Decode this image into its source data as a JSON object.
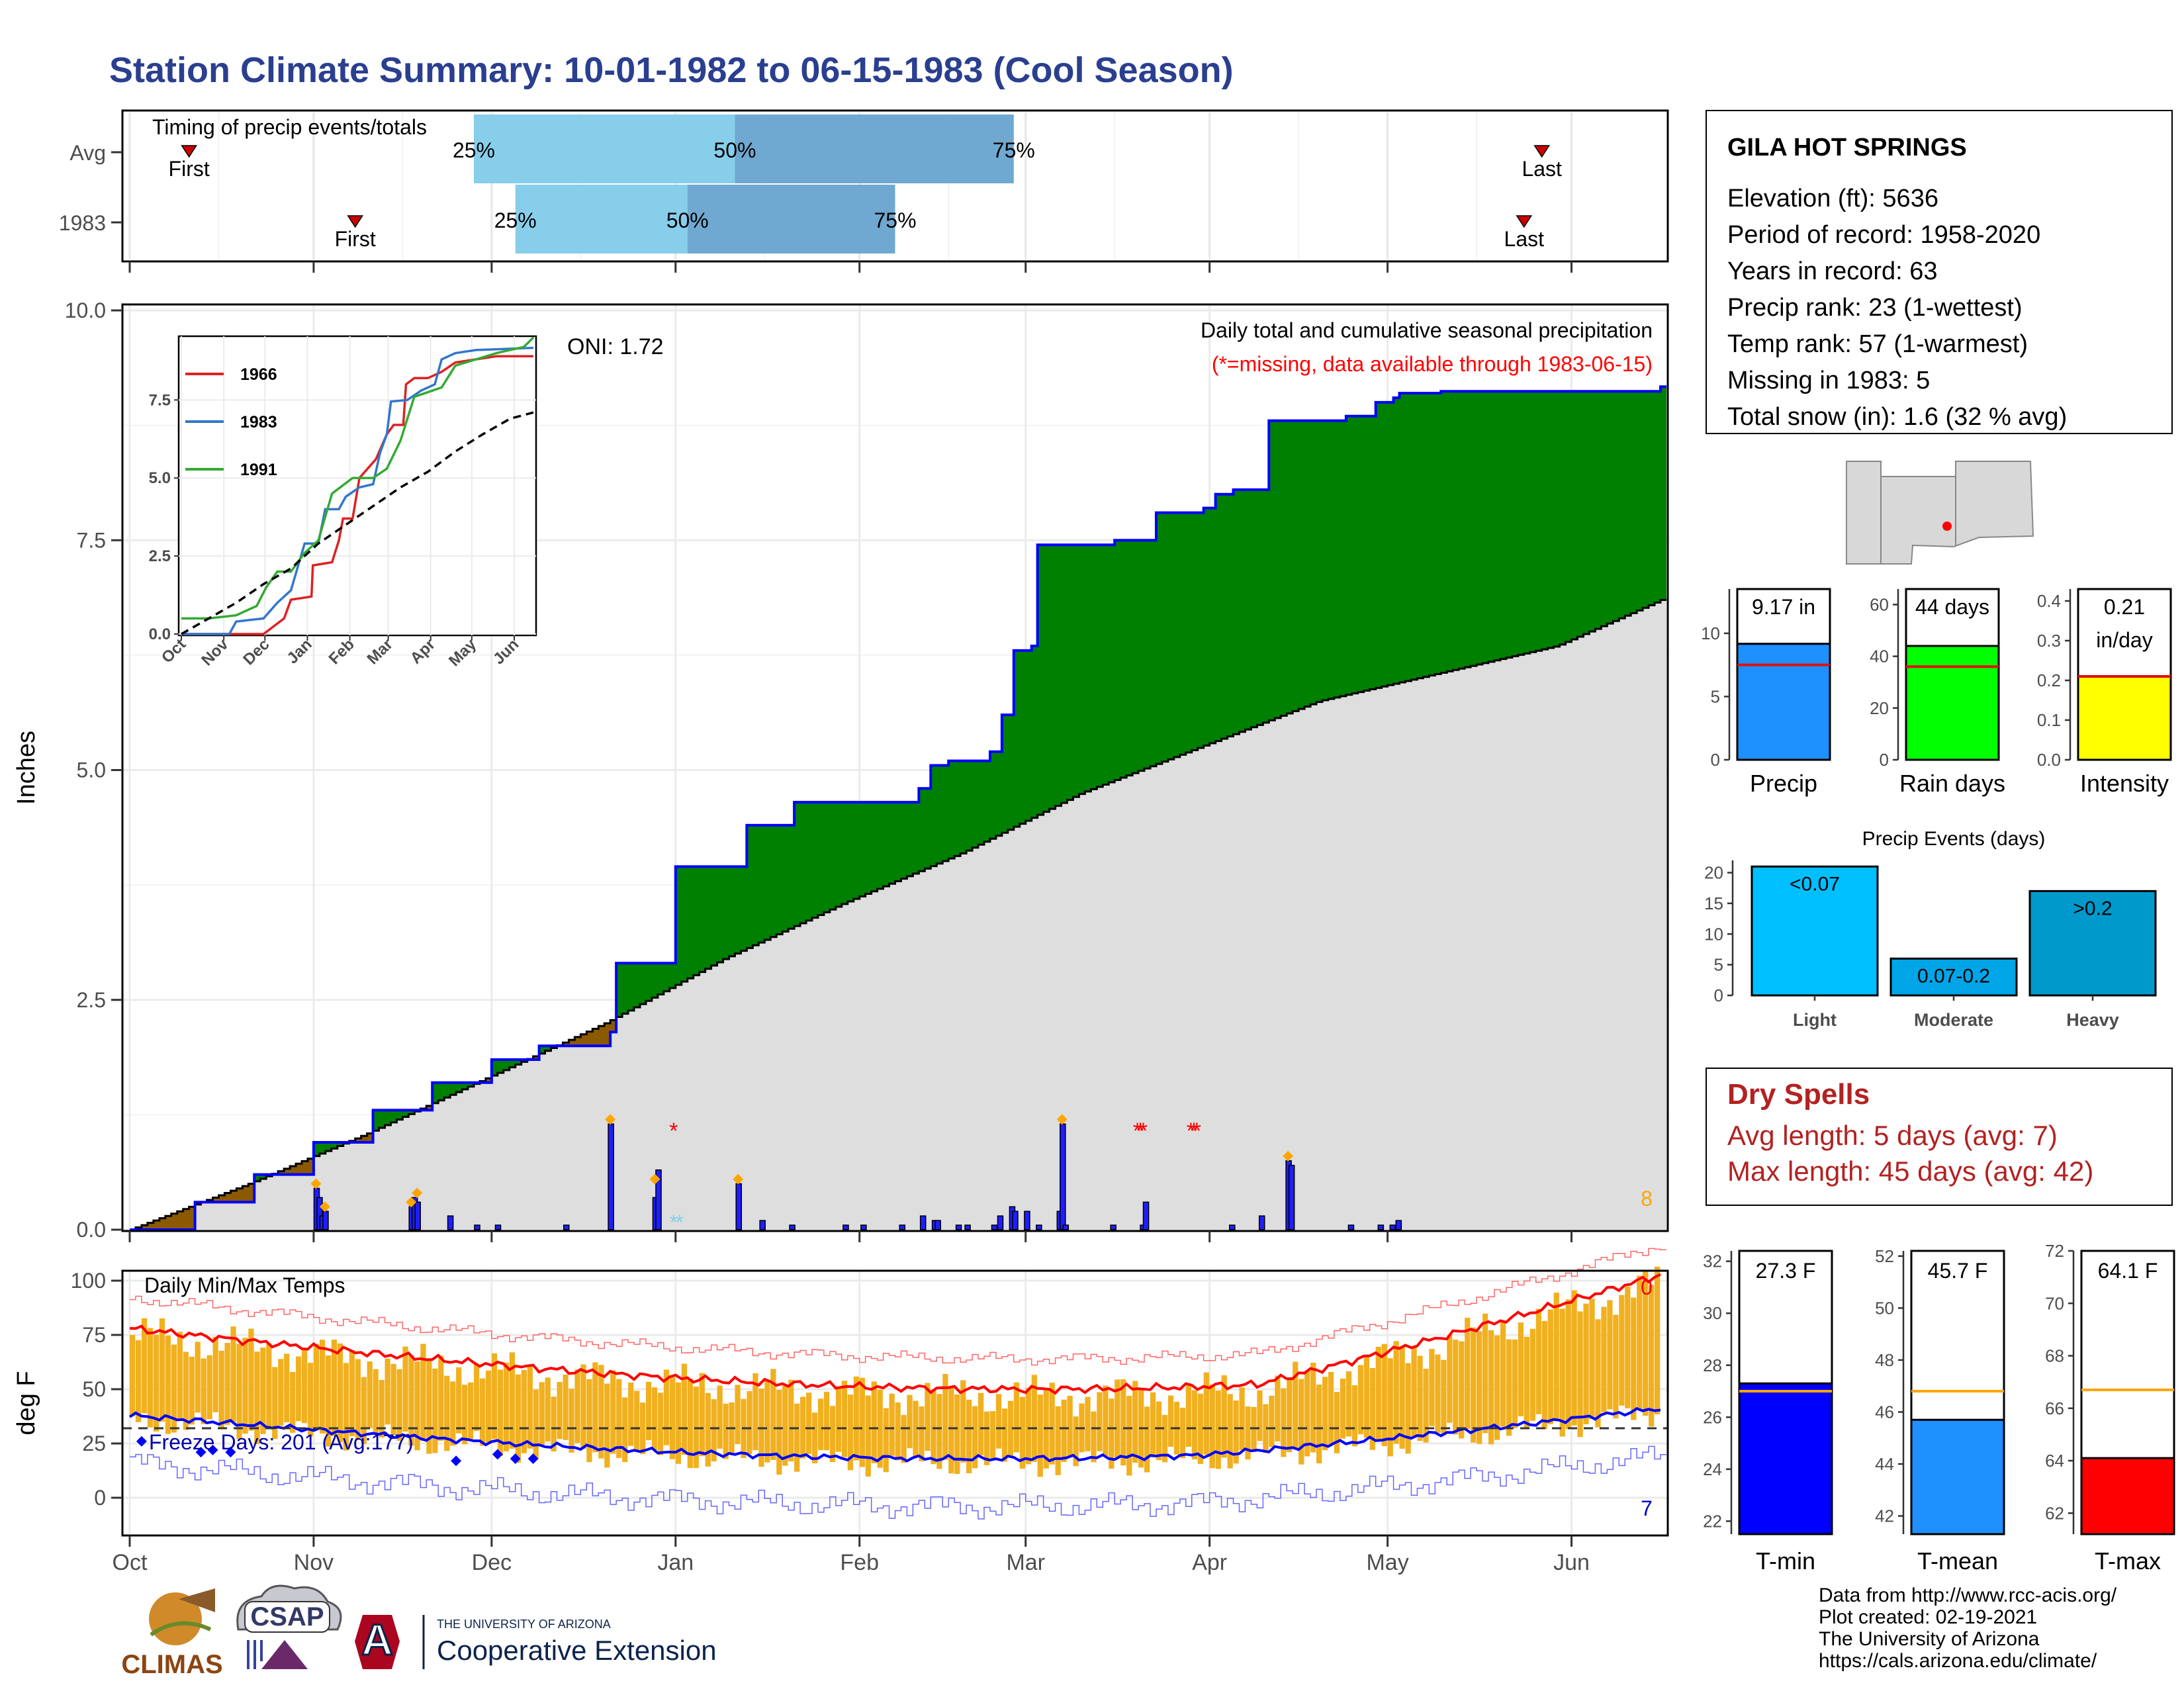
{
  "title": "Station Climate Summary: 10-01-1982 to 06-15-1983 (Cool Season)",
  "timing": {
    "label": "Timing of precip events/totals",
    "rows": [
      {
        "name": "Avg",
        "first": "10-11",
        "last": "05-27",
        "p25": "11-28",
        "p50": "01-11",
        "p75": "02-27"
      },
      {
        "name": "1983",
        "first": "11-08",
        "last": "05-24",
        "p25": "12-05",
        "p50": "01-03",
        "p75": "02-07"
      }
    ],
    "first_label": "First",
    "last_label": "Last",
    "pct_labels": [
      "25%",
      "50%",
      "75%"
    ]
  },
  "months": [
    "Oct",
    "Nov",
    "Dec",
    "Jan",
    "Feb",
    "Mar",
    "Apr",
    "May",
    "Jun"
  ],
  "main": {
    "ylabel": "Inches",
    "yticks": [
      "0.0",
      "2.5",
      "5.0",
      "7.5",
      "10.0"
    ],
    "oni": "ONI: 1.72",
    "label1": "Daily total and cumulative seasonal precipitation",
    "label2": "(*=missing, data available through 1983-06-15)",
    "corner_count": "8"
  },
  "inset": {
    "yticks": [
      "0.0",
      "2.5",
      "5.0",
      "7.5"
    ],
    "months": [
      "Oct",
      "Nov",
      "Dec",
      "Jan",
      "Feb",
      "Mar",
      "Apr",
      "May",
      "Jun"
    ],
    "legend": [
      "1966",
      "1983",
      "1991"
    ]
  },
  "temps": {
    "ylabel": "deg F",
    "label": "Daily Min/Max Temps",
    "yticks": [
      "0",
      "25",
      "50",
      "75",
      "100"
    ],
    "freeze_text": "Freeze Days: 201 (Avg:177)",
    "corner_top": "0",
    "corner_bottom": "7"
  },
  "station": {
    "name": "GILA HOT SPRINGS",
    "lines": [
      "Elevation (ft): 5636",
      "Period of record: 1958-2020",
      "Years in record: 63",
      "Precip rank: 23 (1-wettest)",
      "Temp rank: 57 (1-warmest)",
      "Missing in 1983: 5",
      "Total snow (in): 1.6 (32 % avg)"
    ]
  },
  "mini_bars": [
    {
      "label": "Precip",
      "value_text": "9.17 in",
      "value": 9.17,
      "avg": 7.5,
      "ymax": 13.5,
      "yticks": [
        "0",
        "5",
        "10"
      ],
      "tickvals": [
        0,
        5,
        10
      ],
      "color": "#1e90ff"
    },
    {
      "label": "Rain days",
      "value_text": "44 days",
      "value": 44,
      "avg": 36,
      "ymax": 66,
      "yticks": [
        "0",
        "20",
        "40",
        "60"
      ],
      "tickvals": [
        0,
        20,
        40,
        60
      ],
      "color": "#00ff00"
    },
    {
      "label": "Intensity",
      "value_text": "0.21\nin/day",
      "value": 0.21,
      "avg": 0.21,
      "ymax": 0.43,
      "yticks": [
        "0.0",
        "0.1",
        "0.2",
        "0.3",
        "0.4"
      ],
      "tickvals": [
        0,
        0.1,
        0.2,
        0.3,
        0.4
      ],
      "color": "#ffff00"
    }
  ],
  "precip_events": {
    "title": "Precip Events (days)",
    "yticks": [
      "0",
      "5",
      "10",
      "15",
      "20"
    ],
    "bars": [
      {
        "label": "Light",
        "text": "<0.07",
        "value": 21,
        "color": "#00bfff"
      },
      {
        "label": "Moderate",
        "text": "0.07-0.2",
        "value": 6,
        "color": "#00a5e8"
      },
      {
        "label": "Heavy",
        "text": ">0.2",
        "value": 17,
        "color": "#0099cc"
      }
    ]
  },
  "dry_spells": {
    "title": "Dry Spells",
    "avg_length": "Avg length: 5 days (avg: 7)",
    "max_length": "Max length: 45 days (avg: 42)"
  },
  "temp_bars": [
    {
      "label": "T-min",
      "text": "27.3 F",
      "value": 27.3,
      "avg": 27.0,
      "ymin": 21.5,
      "ymax": 32.4,
      "yticks": [
        "22",
        "24",
        "26",
        "28",
        "30",
        "32"
      ],
      "tickvals": [
        22,
        24,
        26,
        28,
        30,
        32
      ],
      "color": "#0000ff"
    },
    {
      "label": "T-mean",
      "text": "45.7 F",
      "value": 45.7,
      "avg": 46.8,
      "ymin": 41.3,
      "ymax": 52.2,
      "yticks": [
        "42",
        "44",
        "46",
        "48",
        "50",
        "52"
      ],
      "tickvals": [
        42,
        44,
        46,
        48,
        50,
        52
      ],
      "color": "#1e90ff"
    },
    {
      "label": "T-max",
      "text": "64.1 F",
      "value": 64.1,
      "avg": 66.7,
      "ymin": 61.2,
      "ymax": 72.0,
      "yticks": [
        "62",
        "64",
        "66",
        "68",
        "70",
        "72"
      ],
      "tickvals": [
        62,
        64,
        66,
        68,
        70,
        72
      ],
      "color": "#ff0000"
    }
  ],
  "logos": {
    "climas": "CLIMAS",
    "csap": "CSAP",
    "ua_top": "THE UNIVERSITY OF ARIZONA",
    "ua_bottom": "Cooperative Extension",
    "ua_letter": "A"
  },
  "credits": [
    "Data from http://www.rcc-acis.org/",
    "Plot created: 02-19-2021",
    "The University of Arizona",
    "https://cals.arizona.edu/climate/"
  ],
  "colors": {
    "title": "#2a3f8f",
    "cum_obs": "#0000ff",
    "wet": "#008000",
    "dry": "#8b5a00",
    "avg_fill": "#dedede",
    "bars": "#1e1eff",
    "temp_bars": "#f0b020",
    "dry_spell": "#b22222",
    "missing": "#ff0000"
  },
  "chart_data": [
    {
      "type": "area",
      "name": "cumulative seasonal precipitation",
      "x_unit": "day of season (0 = Oct 1)",
      "y_unit": "inches",
      "ylim": [
        0,
        10
      ],
      "series": [
        {
          "name": "observed",
          "points": [
            [
              0,
              0
            ],
            [
              20,
              0.3
            ],
            [
              40,
              0.6
            ],
            [
              60,
              0.95
            ],
            [
              80,
              1.3
            ],
            [
              100,
              1.6
            ],
            [
              120,
              1.85
            ],
            [
              137,
              2.0
            ],
            [
              161,
              2.15
            ],
            [
              162,
              2.9
            ],
            [
              182,
              2.9
            ],
            [
              183,
              3.95
            ],
            [
              205,
              3.95
            ],
            [
              206,
              4.4
            ],
            [
              222,
              4.4
            ],
            [
              223,
              4.65
            ],
            [
              260,
              4.65
            ],
            [
              265,
              4.8
            ],
            [
              268,
              5.05
            ],
            [
              275,
              5.1
            ],
            [
              288,
              5.2
            ],
            [
              293,
              5.6
            ],
            [
              296,
              5.95
            ],
            [
              297,
              6.3
            ],
            [
              303,
              6.35
            ],
            [
              304,
              7.45
            ],
            [
              330,
              7.5
            ],
            [
              343,
              7.5
            ],
            [
              344,
              7.8
            ],
            [
              360,
              7.85
            ],
            [
              365,
              8.0
            ],
            [
              370,
              8.05
            ],
            [
              381,
              8.05
            ],
            [
              382,
              8.8
            ],
            [
              408,
              8.85
            ],
            [
              418,
              9.0
            ],
            [
              424,
              9.05
            ],
            [
              426,
              9.1
            ],
            [
              440,
              9.12
            ],
            [
              515,
              9.17
            ]
          ]
        },
        {
          "name": "average",
          "points": [
            [
              0,
              0
            ],
            [
              40,
              0.5
            ],
            [
              80,
              1.05
            ],
            [
              120,
              1.65
            ],
            [
              160,
              2.25
            ],
            [
              200,
              2.95
            ],
            [
              240,
              3.55
            ],
            [
              280,
              4.1
            ],
            [
              320,
              4.75
            ],
            [
              360,
              5.25
            ],
            [
              400,
              5.75
            ],
            [
              440,
              6.05
            ],
            [
              480,
              6.35
            ],
            [
              515,
              6.85
            ]
          ]
        }
      ],
      "daily_bars": [
        [
          62,
          0.45
        ],
        [
          63,
          0.35
        ],
        [
          64,
          0.15
        ],
        [
          65,
          0.2
        ],
        [
          94,
          0.25
        ],
        [
          95,
          0.35
        ],
        [
          96,
          0.3
        ],
        [
          107,
          0.15
        ],
        [
          116,
          0.05
        ],
        [
          123,
          0.05
        ],
        [
          146,
          0.05
        ],
        [
          161,
          1.15
        ],
        [
          176,
          0.35
        ],
        [
          177,
          0.65
        ],
        [
          204,
          0.5
        ],
        [
          212,
          0.1
        ],
        [
          222,
          0.05
        ],
        [
          240,
          0.05
        ],
        [
          246,
          0.05
        ],
        [
          259,
          0.05
        ],
        [
          266,
          0.15
        ],
        [
          270,
          0.1
        ],
        [
          271,
          0.1
        ],
        [
          278,
          0.05
        ],
        [
          281,
          0.05
        ],
        [
          290,
          0.05
        ],
        [
          292,
          0.15
        ],
        [
          296,
          0.25
        ],
        [
          297,
          0.2
        ],
        [
          301,
          0.2
        ],
        [
          305,
          0.05
        ],
        [
          312,
          0.2
        ],
        [
          313,
          1.15
        ],
        [
          314,
          0.05
        ],
        [
          330,
          0.05
        ],
        [
          340,
          0.05
        ],
        [
          341,
          0.3
        ],
        [
          370,
          0.05
        ],
        [
          380,
          0.15
        ],
        [
          389,
          0.75
        ],
        [
          390,
          0.7
        ],
        [
          410,
          0.05
        ],
        [
          420,
          0.05
        ],
        [
          424,
          0.05
        ],
        [
          426,
          0.1
        ]
      ],
      "missing_days": [
        183,
        339,
        340,
        341,
        357,
        358,
        359
      ],
      "snow_days": [
        183,
        185
      ]
    },
    {
      "type": "line",
      "name": "inset cumulative precipitation comparison",
      "y_unit": "inches",
      "ylim": [
        0,
        9.5
      ],
      "series": [
        {
          "name": "1966",
          "color": "#dd2222",
          "points": [
            [
              0,
              0
            ],
            [
              10,
              0
            ],
            [
              30,
              0
            ],
            [
              60,
              0
            ],
            [
              75,
              0.5
            ],
            [
              80,
              1.1
            ],
            [
              95,
              1.2
            ],
            [
              96,
              2.2
            ],
            [
              110,
              2.3
            ],
            [
              115,
              3.0
            ],
            [
              118,
              3.7
            ],
            [
              125,
              3.7
            ],
            [
              130,
              5.0
            ],
            [
              142,
              5.6
            ],
            [
              150,
              6.4
            ],
            [
              155,
              6.7
            ],
            [
              162,
              6.7
            ],
            [
              164,
              8.0
            ],
            [
              170,
              8.2
            ],
            [
              180,
              8.2
            ],
            [
              190,
              8.4
            ],
            [
              200,
              8.7
            ],
            [
              215,
              8.8
            ],
            [
              230,
              8.9
            ],
            [
              250,
              8.9
            ],
            [
              257,
              8.9
            ]
          ]
        },
        {
          "name": "1983",
          "color": "#3377cc",
          "points": [
            [
              0,
              0
            ],
            [
              35,
              0
            ],
            [
              40,
              0.4
            ],
            [
              60,
              0.5
            ],
            [
              70,
              1.0
            ],
            [
              80,
              1.4
            ],
            [
              90,
              2.9
            ],
            [
              100,
              2.9
            ],
            [
              105,
              4.0
            ],
            [
              115,
              4.0
            ],
            [
              120,
              4.4
            ],
            [
              130,
              4.7
            ],
            [
              140,
              4.8
            ],
            [
              145,
              5.8
            ],
            [
              150,
              6.4
            ],
            [
              153,
              7.45
            ],
            [
              165,
              7.5
            ],
            [
              175,
              7.8
            ],
            [
              185,
              8.0
            ],
            [
              190,
              8.8
            ],
            [
              200,
              9.0
            ],
            [
              215,
              9.1
            ],
            [
              257,
              9.17
            ]
          ]
        },
        {
          "name": "1991",
          "color": "#33aa33",
          "points": [
            [
              0,
              0.5
            ],
            [
              20,
              0.5
            ],
            [
              40,
              0.6
            ],
            [
              55,
              0.9
            ],
            [
              62,
              1.5
            ],
            [
              70,
              2.0
            ],
            [
              80,
              2.0
            ],
            [
              90,
              2.6
            ],
            [
              100,
              3.0
            ],
            [
              110,
              4.5
            ],
            [
              125,
              5.0
            ],
            [
              140,
              5.0
            ],
            [
              150,
              5.3
            ],
            [
              160,
              6.2
            ],
            [
              170,
              7.6
            ],
            [
              190,
              7.9
            ],
            [
              200,
              8.6
            ],
            [
              230,
              9.0
            ],
            [
              250,
              9.2
            ],
            [
              257,
              9.5
            ]
          ]
        },
        {
          "name": "average",
          "color": "#000000",
          "points": [
            [
              0,
              0
            ],
            [
              20,
              0.5
            ],
            [
              40,
              1.0
            ],
            [
              60,
              1.6
            ],
            [
              80,
              2.1
            ],
            [
              100,
              2.9
            ],
            [
              120,
              3.5
            ],
            [
              140,
              4.1
            ],
            [
              160,
              4.7
            ],
            [
              180,
              5.2
            ],
            [
              200,
              5.85
            ],
            [
              220,
              6.4
            ],
            [
              240,
              6.9
            ],
            [
              257,
              7.1
            ]
          ]
        }
      ]
    },
    {
      "type": "bar",
      "name": "precip events (days)",
      "categories": [
        "Light",
        "Moderate",
        "Heavy"
      ],
      "values": [
        21,
        6,
        17
      ],
      "ylim": [
        0,
        22
      ]
    },
    {
      "type": "bar",
      "name": "season totals",
      "categories": [
        "Precip",
        "Rain days",
        "Intensity",
        "T-min",
        "T-mean",
        "T-max"
      ],
      "values": [
        9.17,
        44,
        0.21,
        27.3,
        45.7,
        64.1
      ]
    }
  ]
}
